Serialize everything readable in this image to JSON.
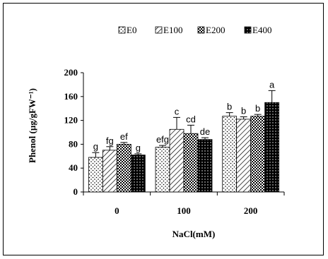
{
  "chart_data": {
    "type": "bar",
    "xlabel": "NaCl(mM)",
    "ylabel": "Phenol (µg/gFW⁻¹)",
    "ylim": [
      0,
      200
    ],
    "yticks": [
      0,
      40,
      80,
      120,
      160,
      200
    ],
    "categories": [
      "0",
      "100",
      "200"
    ],
    "legend_position": "top-right",
    "grid": false,
    "series": [
      {
        "name": "E0",
        "pattern": "dots",
        "values": [
          58,
          75,
          127
        ],
        "errors": [
          8,
          3,
          6
        ],
        "labels": [
          "g",
          "efg",
          "b"
        ]
      },
      {
        "name": "E100",
        "pattern": "hatch",
        "values": [
          70,
          105,
          122
        ],
        "errors": [
          6,
          20,
          4
        ],
        "labels": [
          "fg",
          "c",
          "b"
        ]
      },
      {
        "name": "E200",
        "pattern": "check",
        "values": [
          80,
          98,
          127
        ],
        "errors": [
          3,
          14,
          3
        ],
        "labels": [
          "ef",
          "cd",
          "b"
        ]
      },
      {
        "name": "E400",
        "pattern": "black",
        "values": [
          62,
          88,
          150
        ],
        "errors": [
          2,
          3,
          20
        ],
        "labels": [
          "g",
          "de",
          "a"
        ]
      }
    ]
  }
}
